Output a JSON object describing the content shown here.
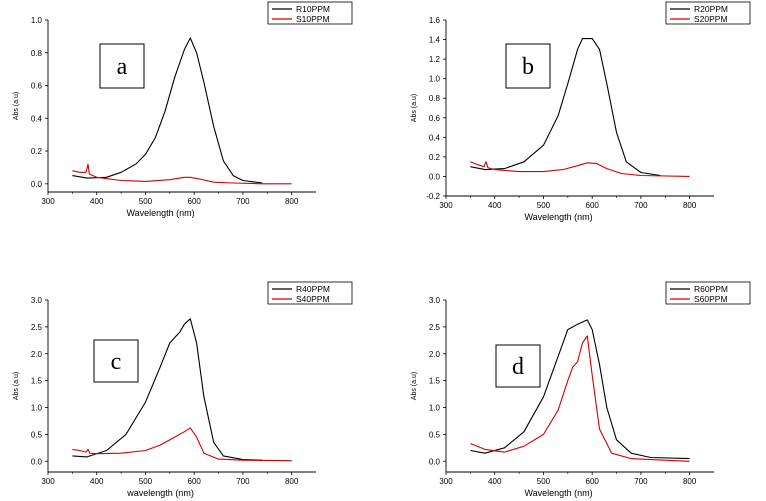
{
  "colors": {
    "R": "#000000",
    "S": "#d40000"
  },
  "chart_data": [
    {
      "type": "line",
      "panel_label": "a",
      "xlabel": "Wavelength (nm)",
      "ylabel": "Abs (a.u)",
      "xlim": [
        300,
        850
      ],
      "ylim": [
        -0.05,
        1.0
      ],
      "xticks": [
        300,
        400,
        500,
        600,
        700,
        800
      ],
      "yticks": [
        0.0,
        0.2,
        0.4,
        0.6,
        0.8,
        1.0
      ],
      "ytick_labels": [
        "0.0",
        "0.2",
        "0.4",
        "0.6",
        "0.8",
        "1.0"
      ],
      "legend": "top-right",
      "series": [
        {
          "name": "R10PPM",
          "x": [
            350,
            380,
            420,
            450,
            480,
            500,
            520,
            540,
            560,
            580,
            592,
            605,
            620,
            640,
            660,
            680,
            700,
            740
          ],
          "y": [
            0.05,
            0.035,
            0.04,
            0.07,
            0.12,
            0.18,
            0.28,
            0.44,
            0.65,
            0.82,
            0.89,
            0.8,
            0.62,
            0.35,
            0.14,
            0.05,
            0.02,
            0.005
          ]
        },
        {
          "name": "S10PPM",
          "x": [
            350,
            365,
            378,
            382,
            385,
            400,
            450,
            500,
            550,
            580,
            592,
            610,
            640,
            680,
            740,
            800
          ],
          "y": [
            0.08,
            0.07,
            0.07,
            0.12,
            0.06,
            0.04,
            0.02,
            0.015,
            0.025,
            0.04,
            0.04,
            0.03,
            0.01,
            0.005,
            0.0,
            0.0
          ]
        }
      ]
    },
    {
      "type": "line",
      "panel_label": "b",
      "xlabel": "Wavelength (nm)",
      "ylabel": "Abs (a.u)",
      "xlim": [
        300,
        850
      ],
      "ylim": [
        -0.2,
        1.6
      ],
      "xticks": [
        300,
        400,
        500,
        600,
        700,
        800
      ],
      "yticks": [
        -0.2,
        0.0,
        0.2,
        0.4,
        0.6,
        0.8,
        1.0,
        1.2,
        1.4,
        1.6
      ],
      "ytick_labels": [
        "-0.2",
        "0.0",
        "0.2",
        "0.4",
        "0.6",
        "0.8",
        "1.0",
        "1.2",
        "1.4",
        "1.6"
      ],
      "legend": "top-right",
      "series": [
        {
          "name": "R20PPM",
          "x": [
            350,
            380,
            420,
            460,
            500,
            530,
            550,
            570,
            580,
            600,
            615,
            630,
            650,
            670,
            700,
            740
          ],
          "y": [
            0.1,
            0.07,
            0.08,
            0.15,
            0.32,
            0.62,
            0.95,
            1.3,
            1.41,
            1.41,
            1.3,
            0.95,
            0.45,
            0.15,
            0.04,
            0.01
          ]
        },
        {
          "name": "S20PPM",
          "x": [
            350,
            365,
            378,
            382,
            386,
            400,
            450,
            500,
            540,
            570,
            590,
            610,
            630,
            660,
            700,
            800
          ],
          "y": [
            0.15,
            0.12,
            0.1,
            0.15,
            0.09,
            0.07,
            0.05,
            0.05,
            0.07,
            0.11,
            0.14,
            0.13,
            0.08,
            0.03,
            0.01,
            0.0
          ]
        }
      ]
    },
    {
      "type": "line",
      "panel_label": "c",
      "xlabel": "wavelength (nm)",
      "ylabel": "Abs (a.u)",
      "xlim": [
        300,
        850
      ],
      "ylim": [
        -0.2,
        3.0
      ],
      "xticks": [
        300,
        400,
        500,
        600,
        700,
        800
      ],
      "yticks": [
        0.0,
        0.5,
        1.0,
        1.5,
        2.0,
        2.5,
        3.0
      ],
      "ytick_labels": [
        "0.0",
        "0.5",
        "1.0",
        "1.5",
        "2.0",
        "2.5",
        "3.0"
      ],
      "legend": "top-right",
      "series": [
        {
          "name": "R40PPM",
          "x": [
            350,
            380,
            420,
            460,
            500,
            530,
            550,
            560,
            570,
            580,
            592,
            605,
            620,
            640,
            660,
            700,
            740
          ],
          "y": [
            0.1,
            0.08,
            0.2,
            0.5,
            1.1,
            1.75,
            2.2,
            2.3,
            2.4,
            2.55,
            2.65,
            2.2,
            1.2,
            0.35,
            0.1,
            0.03,
            0.02
          ]
        },
        {
          "name": "S40PPM",
          "x": [
            350,
            365,
            378,
            382,
            386,
            400,
            450,
            500,
            530,
            560,
            580,
            592,
            605,
            620,
            650,
            700,
            800
          ],
          "y": [
            0.22,
            0.2,
            0.17,
            0.22,
            0.15,
            0.14,
            0.15,
            0.2,
            0.3,
            0.45,
            0.55,
            0.62,
            0.45,
            0.15,
            0.04,
            0.02,
            0.01
          ]
        }
      ]
    },
    {
      "type": "line",
      "panel_label": "d",
      "xlabel": "Wavelength (nm)",
      "ylabel": "Abs (a.u)",
      "xlim": [
        300,
        850
      ],
      "ylim": [
        -0.2,
        3.0
      ],
      "xticks": [
        300,
        400,
        500,
        600,
        700,
        800
      ],
      "yticks": [
        0.0,
        0.5,
        1.0,
        1.5,
        2.0,
        2.5,
        3.0
      ],
      "ytick_labels": [
        "0.0",
        "0.5",
        "1.0",
        "1.5",
        "2.0",
        "2.5",
        "3.0"
      ],
      "legend": "top-right",
      "series": [
        {
          "name": "R60PPM",
          "x": [
            350,
            380,
            420,
            460,
            500,
            530,
            550,
            570,
            590,
            600,
            615,
            630,
            650,
            680,
            720,
            800
          ],
          "y": [
            0.2,
            0.15,
            0.25,
            0.55,
            1.2,
            1.95,
            2.45,
            2.55,
            2.63,
            2.45,
            1.8,
            1.0,
            0.4,
            0.15,
            0.07,
            0.05
          ]
        },
        {
          "name": "S60PPM",
          "x": [
            350,
            380,
            420,
            460,
            500,
            530,
            550,
            560,
            570,
            580,
            590,
            600,
            615,
            640,
            680,
            800
          ],
          "y": [
            0.33,
            0.22,
            0.17,
            0.28,
            0.5,
            0.95,
            1.5,
            1.75,
            1.85,
            2.2,
            2.33,
            1.6,
            0.6,
            0.15,
            0.05,
            0.0
          ]
        }
      ]
    }
  ]
}
